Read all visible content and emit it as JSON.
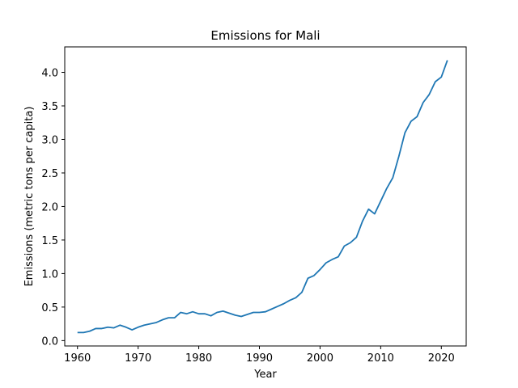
{
  "chart_data": {
    "type": "line",
    "title": "Emissions for Mali",
    "xlabel": "Year",
    "ylabel": "Emissions (metric tons per capita)",
    "xlim": [
      1957.9,
      2024.1
    ],
    "ylim": [
      -0.08,
      4.38
    ],
    "xticks": [
      1960,
      1970,
      1980,
      1990,
      2000,
      2010,
      2020
    ],
    "yticks": [
      0.0,
      0.5,
      1.0,
      1.5,
      2.0,
      2.5,
      3.0,
      3.5,
      4.0
    ],
    "ytick_labels": [
      "0.0",
      "0.5",
      "1.0",
      "1.5",
      "2.0",
      "2.5",
      "3.0",
      "3.5",
      "4.0"
    ],
    "grid": false,
    "line_color": "#1f77b4",
    "series": [
      {
        "x": [
          1960,
          1961,
          1962,
          1963,
          1964,
          1965,
          1966,
          1967,
          1968,
          1969,
          1970,
          1971,
          1972,
          1973,
          1974,
          1975,
          1976,
          1977,
          1978,
          1979,
          1980,
          1981,
          1982,
          1983,
          1984,
          1985,
          1986,
          1987,
          1988,
          1989,
          1990,
          1991,
          1992,
          1993,
          1994,
          1995,
          1996,
          1997,
          1998,
          1999,
          2000,
          2001,
          2002,
          2003,
          2004,
          2005,
          2006,
          2007,
          2008,
          2009,
          2010,
          2011,
          2012,
          2013,
          2014,
          2015,
          2016,
          2017,
          2018,
          2019,
          2020,
          2021
        ],
        "values": [
          0.12,
          0.12,
          0.14,
          0.18,
          0.18,
          0.2,
          0.19,
          0.23,
          0.2,
          0.16,
          0.2,
          0.23,
          0.25,
          0.27,
          0.31,
          0.34,
          0.34,
          0.42,
          0.4,
          0.43,
          0.4,
          0.4,
          0.37,
          0.42,
          0.44,
          0.41,
          0.38,
          0.36,
          0.39,
          0.42,
          0.42,
          0.43,
          0.47,
          0.51,
          0.55,
          0.6,
          0.64,
          0.72,
          0.93,
          0.97,
          1.06,
          1.16,
          1.21,
          1.25,
          1.41,
          1.46,
          1.54,
          1.78,
          1.96,
          1.89,
          2.08,
          2.27,
          2.43,
          2.75,
          3.1,
          3.27,
          3.34,
          3.55,
          3.67,
          3.86,
          3.93,
          4.18
        ]
      }
    ]
  }
}
